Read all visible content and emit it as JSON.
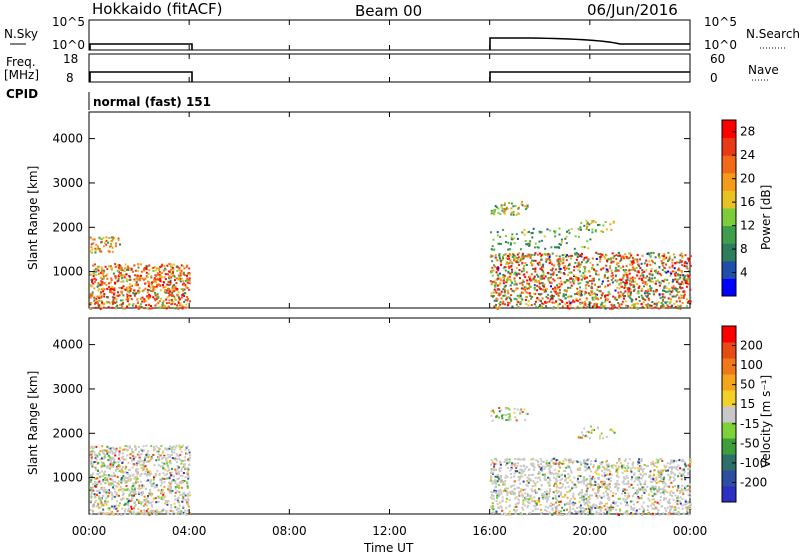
{
  "header": {
    "station": "Hokkaido (fitACF)",
    "beam": "Beam 00",
    "date": "06/Jun/2016"
  },
  "strip_labels": {
    "nsky": "N.Sky",
    "nsearch": "N.Search",
    "freq": "Freq.",
    "mhz": "[MHz]",
    "nave": "Nave",
    "cpid": "CPID",
    "cpid_value": "normal (fast) 151",
    "nsky_ticks": [
      "10^5",
      "10^0"
    ],
    "nsearch_ticks": [
      "10^5",
      "10^0"
    ],
    "freq_ticks": [
      "18",
      "8"
    ],
    "nave_ticks": [
      "60",
      "0"
    ]
  },
  "colors": {
    "power_scale": [
      "#0000ff",
      "#1f4fa8",
      "#2e7d5a",
      "#3f9e4c",
      "#7ccd3a",
      "#e8c220",
      "#f59b1c",
      "#f26a18",
      "#e83a14",
      "#ff0000"
    ],
    "velocity_scale": [
      "#2b2fc4",
      "#2d4ea0",
      "#2f6f6a",
      "#3c9f3c",
      "#7dd23a",
      "#c8c8c8",
      "#f2d02a",
      "#f5a51c",
      "#f07818",
      "#e84a14",
      "#ff0000"
    ]
  },
  "chart_data": [
    {
      "type": "heatmap",
      "title": "Power",
      "ylabel": "Slant Range [km]",
      "xlabel": "Time UT",
      "x_ticks": [
        "00:00",
        "04:00",
        "08:00",
        "12:00",
        "16:00",
        "20:00",
        "00:00"
      ],
      "y_ticks": [
        "1000",
        "2000",
        "3000",
        "4000"
      ],
      "xlim_hours": [
        0,
        24
      ],
      "ylim_km": [
        180,
        4600
      ],
      "colorbar": {
        "label": "Power [dB]",
        "ticks": [
          "4",
          "8",
          "12",
          "16",
          "20",
          "24",
          "28"
        ],
        "range": [
          0,
          30
        ]
      },
      "data_intervals_ut": [
        [
          "00:00",
          "04:00"
        ],
        [
          "16:00",
          "24:00"
        ]
      ]
    },
    {
      "type": "heatmap",
      "title": "Velocity",
      "ylabel": "Slant Range [km]",
      "xlabel": "Time UT",
      "x_ticks": [
        "00:00",
        "04:00",
        "08:00",
        "12:00",
        "16:00",
        "20:00",
        "00:00"
      ],
      "y_ticks": [
        "1000",
        "2000",
        "3000",
        "4000"
      ],
      "xlim_hours": [
        0,
        24
      ],
      "ylim_km": [
        180,
        4600
      ],
      "colorbar": {
        "label": "Velocity [m s⁻¹]",
        "ticks": [
          "200",
          "100",
          "50",
          "15",
          "-15",
          "-50",
          "-100",
          "-200"
        ]
      },
      "data_intervals_ut": [
        [
          "00:00",
          "04:00"
        ],
        [
          "16:00",
          "24:00"
        ]
      ]
    }
  ]
}
